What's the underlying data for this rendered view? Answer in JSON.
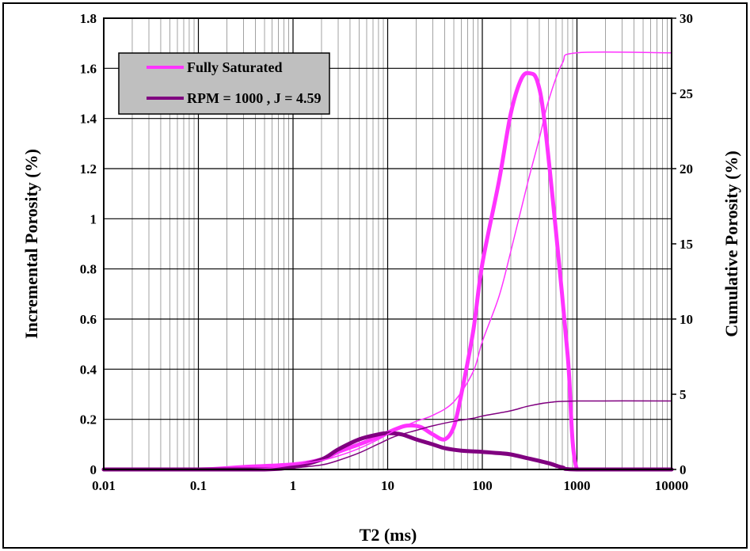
{
  "chart_data": {
    "type": "line",
    "xlabel": "T2 (ms)",
    "ylabel": "Incremental Porosity (%)",
    "y2label": "Cumulative Porosity (%)",
    "xscale": "log",
    "xlim": [
      0.01,
      10000
    ],
    "ylim": [
      0,
      1.8
    ],
    "y2lim": [
      0,
      30
    ],
    "grid": true,
    "legend_position": "top-left",
    "x_ticks": [
      0.01,
      0.1,
      1,
      10,
      100,
      1000,
      10000
    ],
    "x_tick_labels": [
      "0.01",
      "0.1",
      "1",
      "10",
      "100",
      "1000",
      "10000"
    ],
    "y_ticks": [
      0,
      0.2,
      0.4,
      0.6,
      0.8,
      1,
      1.2,
      1.4,
      1.6,
      1.8
    ],
    "y_tick_labels": [
      "0",
      "0.2",
      "0.4",
      "0.6",
      "0.8",
      "1",
      "1.2",
      "1.4",
      "1.6",
      "1.8"
    ],
    "y2_ticks": [
      0,
      5,
      10,
      15,
      20,
      25,
      30
    ],
    "y2_tick_labels": [
      "0",
      "5",
      "10",
      "15",
      "20",
      "25",
      "30"
    ],
    "legend": [
      {
        "name": "Fully Saturated",
        "color": "#ff33ff"
      },
      {
        "name": "RPM = 1000 , J = 4.59",
        "color": "#800080"
      }
    ],
    "series": [
      {
        "name": "Fully Saturated",
        "kind": "incremental",
        "axis": "left",
        "color": "#ff33ff",
        "x": [
          0.01,
          0.1,
          0.3,
          1,
          2,
          3,
          5,
          8,
          12,
          16,
          22,
          30,
          40,
          50,
          60,
          80,
          100,
          150,
          200,
          260,
          320,
          380,
          450,
          600,
          800,
          1000,
          2000,
          10000
        ],
        "y": [
          0,
          0,
          0.01,
          0.02,
          0.04,
          0.07,
          0.1,
          0.13,
          0.16,
          0.175,
          0.17,
          0.14,
          0.12,
          0.17,
          0.3,
          0.55,
          0.82,
          1.15,
          1.42,
          1.56,
          1.58,
          1.55,
          1.4,
          0.95,
          0.45,
          0,
          0,
          0
        ]
      },
      {
        "name": "RPM = 1000 , J = 4.59",
        "kind": "incremental",
        "axis": "left",
        "color": "#800080",
        "x": [
          0.01,
          0.1,
          0.5,
          1,
          2,
          3,
          5,
          8,
          10,
          14,
          20,
          30,
          40,
          60,
          100,
          150,
          200,
          300,
          500,
          700,
          1000,
          10000
        ],
        "y": [
          0,
          0,
          0,
          0.01,
          0.04,
          0.08,
          0.12,
          0.14,
          0.145,
          0.14,
          0.12,
          0.1,
          0.085,
          0.075,
          0.07,
          0.065,
          0.06,
          0.045,
          0.025,
          0.008,
          0,
          0
        ]
      },
      {
        "name": "Fully Saturated",
        "kind": "cumulative",
        "axis": "right",
        "color": "#ff33ff",
        "x": [
          0.01,
          0.3,
          1,
          2,
          3,
          5,
          8,
          12,
          20,
          30,
          50,
          80,
          100,
          150,
          200,
          300,
          400,
          500,
          700,
          1000,
          10000
        ],
        "y": [
          0,
          0,
          0.3,
          0.6,
          0.9,
          1.4,
          2.0,
          2.6,
          3.2,
          3.6,
          4.5,
          6.5,
          8.5,
          11.5,
          14.5,
          19,
          22,
          24.5,
          27,
          27.7,
          27.7
        ]
      },
      {
        "name": "RPM = 1000 , J = 4.59",
        "kind": "cumulative",
        "axis": "right",
        "color": "#800080",
        "x": [
          0.01,
          0.5,
          1,
          2,
          3,
          5,
          8,
          12,
          20,
          30,
          50,
          80,
          100,
          200,
          300,
          500,
          1000,
          10000
        ],
        "y": [
          0,
          0,
          0.1,
          0.3,
          0.6,
          1.1,
          1.7,
          2.2,
          2.6,
          2.9,
          3.2,
          3.4,
          3.55,
          3.9,
          4.2,
          4.45,
          4.55,
          4.55
        ]
      }
    ]
  }
}
